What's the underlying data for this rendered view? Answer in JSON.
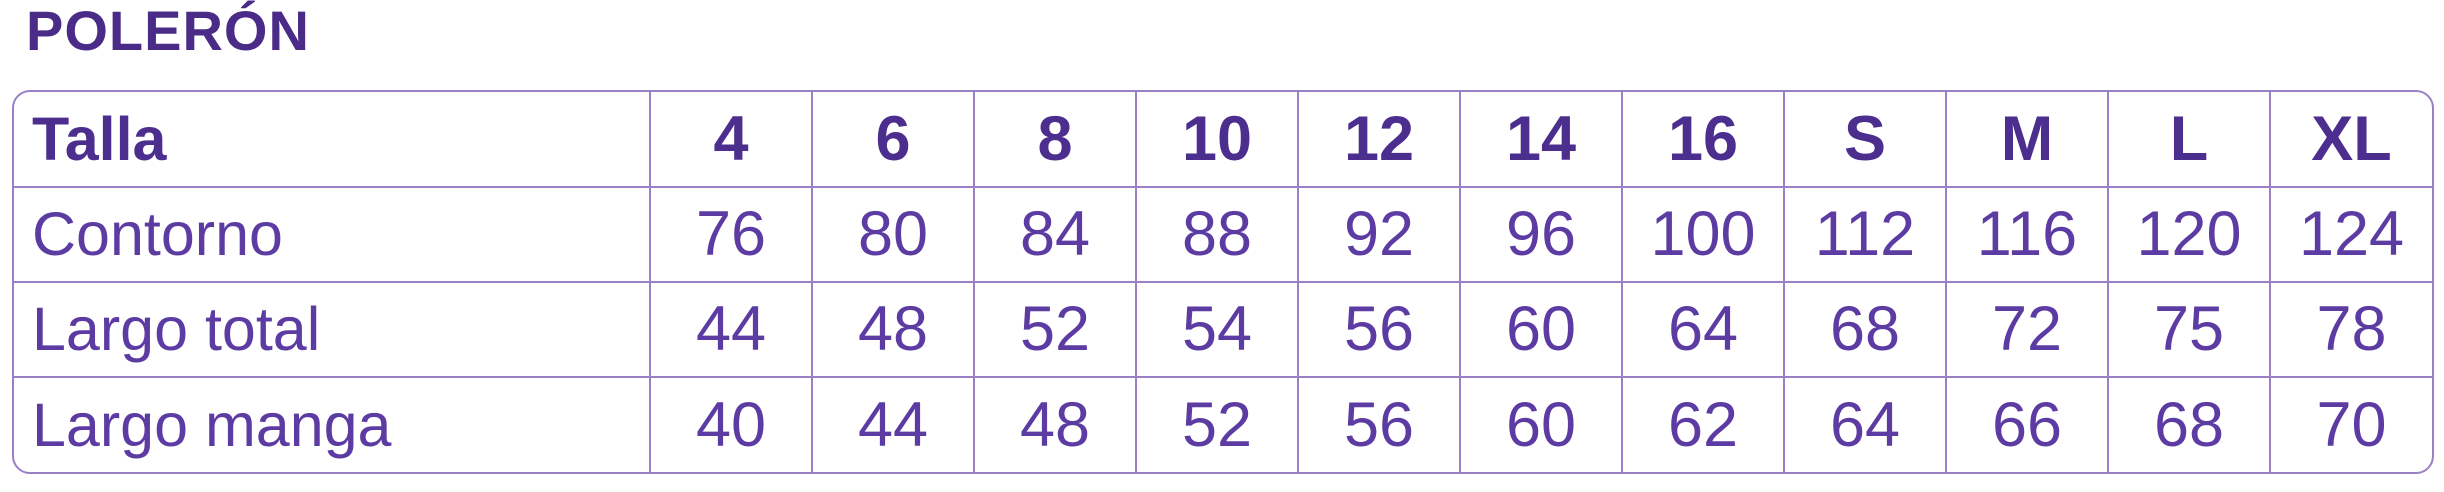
{
  "page_title": "POLERÓN",
  "colors": {
    "title": "#4a2b87",
    "header_text": "#4c2e8e",
    "cell_text": "#5c3ba3",
    "border": "#9a80c6"
  },
  "table": {
    "header": [
      "Talla",
      "4",
      "6",
      "8",
      "10",
      "12",
      "14",
      "16",
      "S",
      "M",
      "L",
      "XL"
    ],
    "rows": [
      {
        "label": "Contorno",
        "values": [
          "76",
          "80",
          "84",
          "88",
          "92",
          "96",
          "100",
          "112",
          "116",
          "120",
          "124"
        ]
      },
      {
        "label": "Largo total",
        "values": [
          "44",
          "48",
          "52",
          "54",
          "56",
          "60",
          "64",
          "68",
          "72",
          "75",
          "78"
        ]
      },
      {
        "label": "Largo manga",
        "values": [
          "40",
          "44",
          "48",
          "52",
          "56",
          "60",
          "62",
          "64",
          "66",
          "68",
          "70"
        ]
      }
    ]
  },
  "chart_data": {
    "type": "table",
    "title": "POLERÓN",
    "columns": [
      "Talla",
      "4",
      "6",
      "8",
      "10",
      "12",
      "14",
      "16",
      "S",
      "M",
      "L",
      "XL"
    ],
    "rows": [
      [
        "Contorno",
        76,
        80,
        84,
        88,
        92,
        96,
        100,
        112,
        116,
        120,
        124
      ],
      [
        "Largo total",
        44,
        48,
        52,
        54,
        56,
        60,
        64,
        68,
        72,
        75,
        78
      ],
      [
        "Largo manga",
        40,
        44,
        48,
        52,
        56,
        60,
        62,
        64,
        66,
        68,
        70
      ]
    ]
  }
}
